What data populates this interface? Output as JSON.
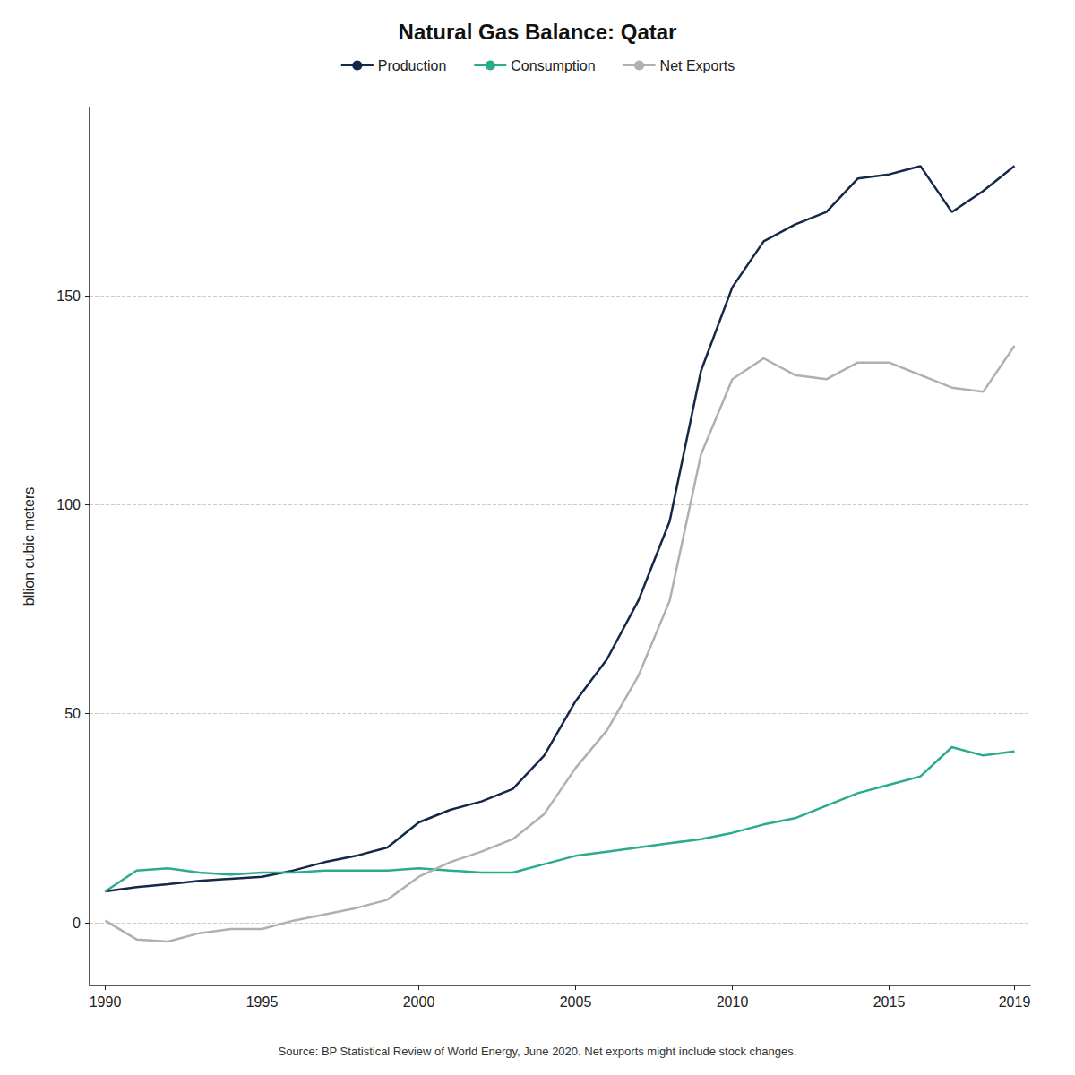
{
  "chart_data": {
    "type": "line",
    "title": "Natural Gas Balance: Qatar",
    "ylabel": "bllion cubic meters",
    "source": "Source: BP Statistical Review of World Energy, June 2020. Net exports might include stock changes.",
    "x": [
      1990,
      1991,
      1992,
      1993,
      1994,
      1995,
      1996,
      1997,
      1998,
      1999,
      2000,
      2001,
      2002,
      2003,
      2004,
      2005,
      2006,
      2007,
      2008,
      2009,
      2010,
      2011,
      2012,
      2013,
      2014,
      2015,
      2016,
      2017,
      2018,
      2019
    ],
    "series": [
      {
        "name": "Production",
        "color": "#152848",
        "values": [
          7.5,
          8.5,
          9.2,
          10.0,
          10.5,
          11.0,
          12.5,
          14.5,
          16.0,
          18.0,
          24.0,
          27.0,
          29.0,
          32.0,
          40.0,
          53.0,
          63.0,
          77.0,
          96.0,
          132.0,
          152.0,
          163.0,
          167.0,
          170.0,
          178.0,
          179.0,
          181.0,
          170.0,
          175.0,
          181.0
        ]
      },
      {
        "name": "Consumption",
        "color": "#2aab8e",
        "values": [
          7.5,
          12.5,
          13.0,
          12.0,
          11.5,
          12.0,
          12.0,
          12.5,
          12.5,
          12.5,
          13.0,
          12.5,
          12.0,
          12.0,
          14.0,
          16.0,
          17.0,
          18.0,
          19.0,
          20.0,
          21.5,
          23.5,
          25.0,
          28.0,
          31.0,
          33.0,
          35.0,
          42.0,
          40.0,
          41.0
        ]
      },
      {
        "name": "Net Exports",
        "color": "#b0b0b0",
        "values": [
          0.5,
          -4.0,
          -4.5,
          -2.5,
          -1.5,
          -1.5,
          0.5,
          2.0,
          3.5,
          5.5,
          11.0,
          14.5,
          17.0,
          20.0,
          26.0,
          37.0,
          46.0,
          59.0,
          77.0,
          112.0,
          130.0,
          135.0,
          131.0,
          130.0,
          134.0,
          134.0,
          131.0,
          128.0,
          127.0,
          138.0
        ]
      }
    ],
    "xlim": [
      1989.5,
      2019.5
    ],
    "xticks": [
      1990,
      1995,
      2000,
      2005,
      2010,
      2015,
      2019
    ],
    "ylim": [
      -15,
      195
    ],
    "yticks": [
      0,
      50,
      100,
      150
    ],
    "grid": true,
    "legend": "top"
  }
}
